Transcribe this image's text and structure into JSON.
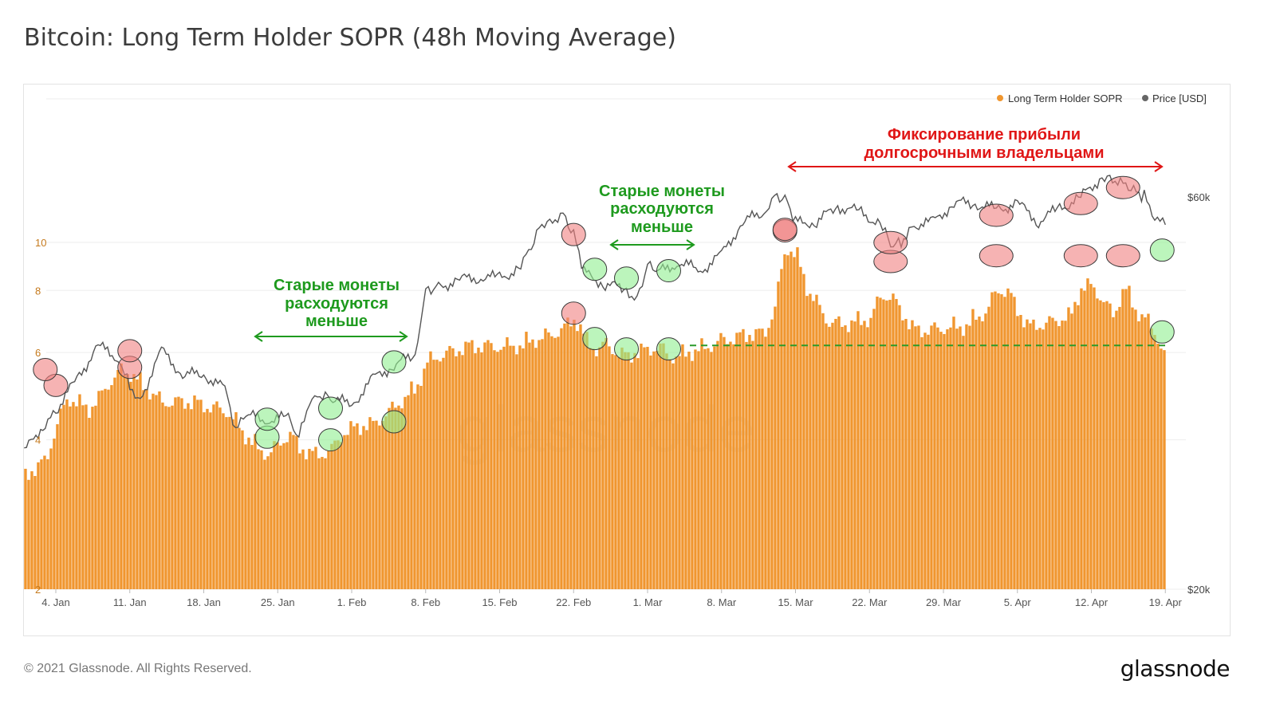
{
  "title": "Bitcoin: Long Term Holder SOPR (48h Moving Average)",
  "footer": {
    "copyright": "© 2021 Glassnode. All Rights Reserved.",
    "logo": "glassnode",
    "watermark": "glassnode"
  },
  "colors": {
    "sopr": "#F0962F",
    "price": "#444444",
    "ann_green": "#1E9A1E",
    "ann_red": "#E01616",
    "circle_green": "#90EE90",
    "circle_red": "#F08080"
  },
  "chart_data": {
    "type": "bar",
    "scale": "log",
    "left_axis": {
      "ticks": [
        2,
        4,
        6,
        8,
        10
      ],
      "range": [
        2,
        16
      ]
    },
    "right_axis": {
      "ticks": [
        "$20k",
        "$60k"
      ],
      "range_usd": [
        20000,
        68000
      ]
    },
    "x_ticks": [
      "4. Jan",
      "11. Jan",
      "18. Jan",
      "25. Jan",
      "1. Feb",
      "8. Feb",
      "15. Feb",
      "22. Feb",
      "1. Mar",
      "8. Mar",
      "15. Mar",
      "22. Mar",
      "29. Mar",
      "5. Apr",
      "12. Apr",
      "19. Apr"
    ],
    "legend": {
      "position": "top-right",
      "items": [
        "Long Term Holder SOPR",
        "Price [USD]"
      ]
    },
    "series": [
      {
        "name": "Long Term Holder SOPR",
        "x": [
          "1. Jan",
          "3. Jan",
          "4. Jan",
          "5. Jan",
          "7. Jan",
          "8. Jan",
          "9. Jan",
          "10. Jan",
          "11. Jan",
          "12. Jan",
          "14. Jan",
          "16. Jan",
          "18. Jan",
          "20. Jan",
          "21. Jan",
          "22. Jan",
          "23. Jan",
          "24. Jan",
          "25. Jan",
          "26. Jan",
          "27. Jan",
          "28. Jan",
          "29. Jan",
          "30. Jan",
          "31. Jan",
          "1. Feb",
          "3. Feb",
          "4. Feb",
          "5. Feb",
          "7. Feb",
          "8. Feb",
          "9. Feb",
          "11. Feb",
          "13. Feb",
          "15. Feb",
          "17. Feb",
          "19. Feb",
          "20. Feb",
          "21. Feb",
          "22. Feb",
          "23. Feb",
          "24. Feb",
          "25. Feb",
          "26. Feb",
          "27. Feb",
          "28. Feb",
          "1. Mar",
          "2. Mar",
          "3. Mar",
          "4. Mar",
          "5. Mar",
          "6. Mar",
          "8. Mar",
          "10. Mar",
          "11. Mar",
          "12. Mar",
          "13. Mar",
          "14. Mar",
          "15. Mar",
          "16. Mar",
          "18. Mar",
          "20. Mar",
          "22. Mar",
          "23. Mar",
          "24. Mar",
          "25. Mar",
          "26. Mar",
          "27. Mar",
          "29. Mar",
          "31. Mar",
          "2. Apr",
          "3. Apr",
          "4. Apr",
          "5. Apr",
          "6. Apr",
          "8. Apr",
          "10. Apr",
          "11. Apr",
          "12. Apr",
          "13. Apr",
          "14. Apr",
          "15. Apr",
          "16. Apr",
          "17. Apr",
          "18. Apr",
          "19. Apr"
        ],
        "values": [
          3.6,
          3.9,
          4.6,
          5.2,
          4.9,
          5.2,
          5.6,
          5.9,
          5.8,
          5.5,
          5.1,
          5.1,
          5.0,
          4.9,
          4.6,
          4.3,
          4.1,
          4.0,
          4.2,
          4.4,
          4.1,
          4.0,
          4.0,
          4.1,
          4.4,
          4.5,
          4.6,
          4.8,
          5.0,
          5.4,
          6.1,
          6.3,
          6.5,
          6.6,
          6.6,
          6.6,
          6.9,
          7.0,
          7.2,
          7.5,
          6.8,
          6.5,
          6.7,
          6.4,
          6.3,
          6.4,
          6.5,
          6.6,
          6.3,
          6.3,
          6.4,
          6.5,
          6.8,
          6.9,
          7.0,
          7.0,
          8.0,
          10.5,
          10.0,
          8.6,
          7.4,
          7.3,
          7.5,
          8.4,
          8.3,
          7.7,
          7.1,
          7.1,
          7.2,
          7.2,
          7.8,
          8.6,
          8.5,
          7.7,
          7.2,
          7.4,
          7.6,
          8.7,
          8.7,
          8.2,
          7.6,
          8.7,
          7.8,
          7.5,
          7.0,
          6.2
        ]
      },
      {
        "name": "Price [USD]",
        "x": [
          "1. Jan",
          "3. Jan",
          "4. Jan",
          "6. Jan",
          "8. Jan",
          "10. Jan",
          "11. Jan",
          "12. Jan",
          "14. Jan",
          "16. Jan",
          "18. Jan",
          "20. Jan",
          "21. Jan",
          "22. Jan",
          "24. Jan",
          "26. Jan",
          "27. Jan",
          "28. Jan",
          "29. Jan",
          "30. Jan",
          "1. Feb",
          "3. Feb",
          "5. Feb",
          "7. Feb",
          "8. Feb",
          "9. Feb",
          "11. Feb",
          "13. Feb",
          "15. Feb",
          "17. Feb",
          "18. Feb",
          "19. Feb",
          "20. Feb",
          "21. Feb",
          "22. Feb",
          "23. Feb",
          "25. Feb",
          "27. Feb",
          "28. Feb",
          "1. Mar",
          "2. Mar",
          "4. Mar",
          "6. Mar",
          "8. Mar",
          "10. Mar",
          "12. Mar",
          "13. Mar",
          "14. Mar",
          "15. Mar",
          "17. Mar",
          "19. Mar",
          "21. Mar",
          "23. Mar",
          "24. Mar",
          "25. Mar",
          "26. Mar",
          "28. Mar",
          "30. Mar",
          "1. Apr",
          "3. Apr",
          "5. Apr",
          "7. Apr",
          "9. Apr",
          "11. Apr",
          "13. Apr",
          "14. Apr",
          "15. Apr",
          "16. Apr",
          "17. Apr",
          "18. Apr",
          "19. Apr"
        ],
        "values": [
          29300,
          32000,
          33000,
          36000,
          39500,
          38200,
          35500,
          34000,
          39000,
          36500,
          36500,
          35000,
          31000,
          32500,
          32200,
          32300,
          30500,
          33500,
          34300,
          34200,
          33500,
          36000,
          37500,
          38500,
          46300,
          46500,
          47500,
          48000,
          47800,
          49200,
          52000,
          55800,
          56300,
          57600,
          54000,
          48500,
          47000,
          46300,
          45200,
          49500,
          48500,
          50000,
          48800,
          51000,
          55900,
          57500,
          60500,
          59800,
          55800,
          56000,
          58400,
          57600,
          55600,
          52500,
          53000,
          55500,
          55800,
          59000,
          58900,
          57900,
          58900,
          56100,
          58100,
          59900,
          63500,
          63200,
          62900,
          61300,
          60000,
          56000,
          55500
        ]
      }
    ],
    "annotations": [
      {
        "text": [
          "Старые монеты",
          "расходуются",
          "меньше"
        ],
        "color": "green",
        "span": [
          "23. Jan",
          "6. Feb"
        ]
      },
      {
        "text": [
          "Старые монеты",
          "расходуются",
          "меньше"
        ],
        "color": "green",
        "span": [
          "24. Feb",
          "5. Mar"
        ]
      },
      {
        "text": [
          "Фиксирование прибыли",
          "долгосрочными владельцами"
        ],
        "color": "red",
        "span": [
          "11. Mar",
          "16. Apr"
        ]
      }
    ]
  }
}
